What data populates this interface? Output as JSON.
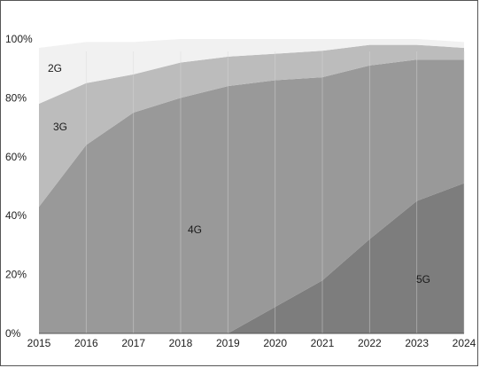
{
  "chart_data": {
    "type": "area",
    "stacked": true,
    "x": [
      "2015",
      "2016",
      "2017",
      "2018",
      "2019",
      "2020",
      "2021",
      "2022",
      "2023",
      "2024"
    ],
    "series": [
      {
        "name": "5G",
        "values": [
          0,
          0,
          0,
          0,
          0,
          9,
          18,
          32,
          45,
          51
        ],
        "color": "#7d7d7d"
      },
      {
        "name": "4G",
        "values": [
          43,
          64,
          75,
          80,
          84,
          77,
          69,
          59,
          48,
          42
        ],
        "color": "#999999"
      },
      {
        "name": "3G",
        "values": [
          35,
          21,
          13,
          12,
          10,
          9,
          9,
          7,
          5,
          4
        ],
        "color": "#bcbcbc"
      },
      {
        "name": "2G",
        "values": [
          19,
          14,
          11,
          8,
          6,
          5,
          4,
          2,
          2,
          2
        ],
        "color": "#f1f1f1"
      }
    ],
    "y_ticks": [
      "0%",
      "20%",
      "40%",
      "60%",
      "80%",
      "100%"
    ],
    "ylim": [
      0,
      100
    ],
    "grid": "vertical",
    "title": "",
    "xlabel": "",
    "ylabel": ""
  }
}
